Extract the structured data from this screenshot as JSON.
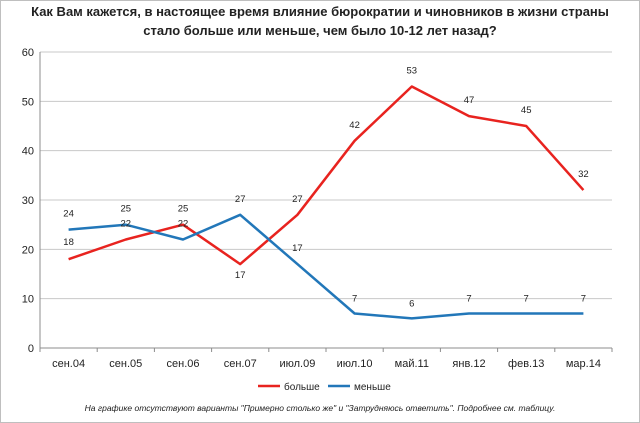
{
  "chart_data": {
    "type": "line",
    "title": "Как Вам кажется, в настоящее время влияние бюрократии и чиновников в жизни страны стало больше или меньше, чем было 10-12 лет назад?",
    "categories": [
      "сен.04",
      "сен.05",
      "сен.06",
      "сен.07",
      "июл.09",
      "июл.10",
      "май.11",
      "янв.12",
      "фев.13",
      "мар.14"
    ],
    "ylim": [
      0,
      60
    ],
    "yticks": [
      0,
      10,
      20,
      30,
      40,
      50,
      60
    ],
    "ytick_labels": [
      "0",
      "10",
      "20",
      "30",
      "40",
      "50",
      "60"
    ],
    "grid": "horizontal",
    "legend_position": "bottom",
    "series": [
      {
        "name": "больше",
        "color": "#e8231f",
        "values": [
          18,
          22,
          25,
          17,
          27,
          42,
          53,
          47,
          45,
          32
        ],
        "labels": [
          "18",
          "22",
          "25",
          "17",
          "27",
          "42",
          "53",
          "47",
          "45",
          "32"
        ]
      },
      {
        "name": "меньше",
        "color": "#2277b9",
        "values": [
          24,
          25,
          22,
          27,
          17,
          7,
          6,
          7,
          7,
          7
        ],
        "labels": [
          "24",
          "25",
          "22",
          "27",
          "17",
          "7",
          "6",
          "7",
          "7",
          "7"
        ]
      }
    ],
    "footnote": "На графике отсутствуют варианты \"Примерно столько же\" и \"Затрудняюсь ответить\". Подробнее см. таблицу."
  }
}
